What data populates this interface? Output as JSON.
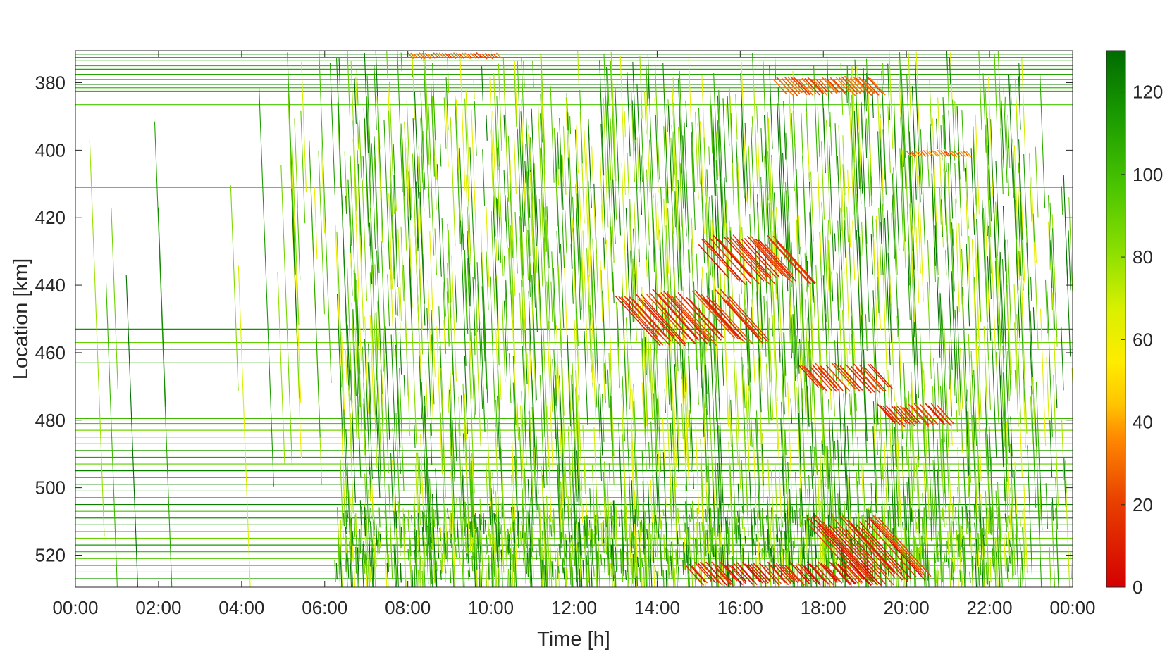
{
  "chart_data": {
    "type": "heatmap",
    "title": "",
    "xlabel": "Time [h]",
    "ylabel": "Location [km]",
    "x_range_hours": [
      0,
      24
    ],
    "y_range_km": [
      370.5,
      529.5
    ],
    "y_reversed": true,
    "x_ticks": [
      "00:00",
      "02:00",
      "04:00",
      "06:00",
      "08:00",
      "10:00",
      "12:00",
      "14:00",
      "16:00",
      "18:00",
      "20:00",
      "22:00",
      "00:00"
    ],
    "x_tick_values_h": [
      0,
      2,
      4,
      6,
      8,
      10,
      12,
      14,
      16,
      18,
      20,
      22,
      24
    ],
    "y_ticks": [
      "380",
      "400",
      "420",
      "440",
      "460",
      "480",
      "500",
      "520"
    ],
    "y_tick_values_km": [
      380,
      400,
      420,
      440,
      460,
      480,
      500,
      520
    ],
    "colorbar": {
      "range": [
        0,
        130
      ],
      "ticks": [
        "0",
        "20",
        "40",
        "60",
        "80",
        "100",
        "120"
      ],
      "tick_values": [
        0,
        20,
        40,
        60,
        80,
        100,
        120
      ],
      "colors": {
        "low": "#d40000",
        "orange": "#ff7a00",
        "mid": "#ffe600",
        "light_green": "#7fe000",
        "high": "#006b00"
      }
    },
    "detector_lines_km": [
      371.5,
      372.5,
      373.5,
      375,
      376,
      377.5,
      379,
      380.5,
      381.5,
      382.5,
      386.5,
      411,
      453,
      457,
      459,
      463,
      479.5,
      481,
      483,
      485,
      487,
      489,
      491,
      493,
      495,
      497,
      499,
      501,
      503,
      505,
      507,
      509,
      511,
      513,
      515,
      517,
      519,
      521,
      523,
      525,
      527
    ],
    "congestion_regions": [
      {
        "t_start_h": 8.0,
        "t_end_h": 10.2,
        "km_start": 371,
        "km_end": 373,
        "speed": 25
      },
      {
        "t_start_h": 16.8,
        "t_end_h": 19.2,
        "km_start": 378,
        "km_end": 384,
        "speed": 25
      },
      {
        "t_start_h": 20.0,
        "t_end_h": 21.5,
        "km_start": 400,
        "km_end": 402,
        "speed": 30
      },
      {
        "t_start_h": 15.0,
        "t_end_h": 17.0,
        "km_start": 425,
        "km_end": 440,
        "speed": 15
      },
      {
        "t_start_h": 13.0,
        "t_end_h": 15.8,
        "km_start": 441,
        "km_end": 458,
        "speed": 15
      },
      {
        "t_start_h": 17.4,
        "t_end_h": 19.2,
        "km_start": 463,
        "km_end": 472,
        "speed": 15
      },
      {
        "t_start_h": 19.3,
        "t_end_h": 20.8,
        "km_start": 475,
        "km_end": 482,
        "speed": 15
      },
      {
        "t_start_h": 17.6,
        "t_end_h": 19.4,
        "km_start": 508,
        "km_end": 529,
        "speed": 12
      },
      {
        "t_start_h": 14.7,
        "t_end_h": 19.1,
        "km_start": 522,
        "km_end": 529,
        "speed": 10
      }
    ]
  }
}
